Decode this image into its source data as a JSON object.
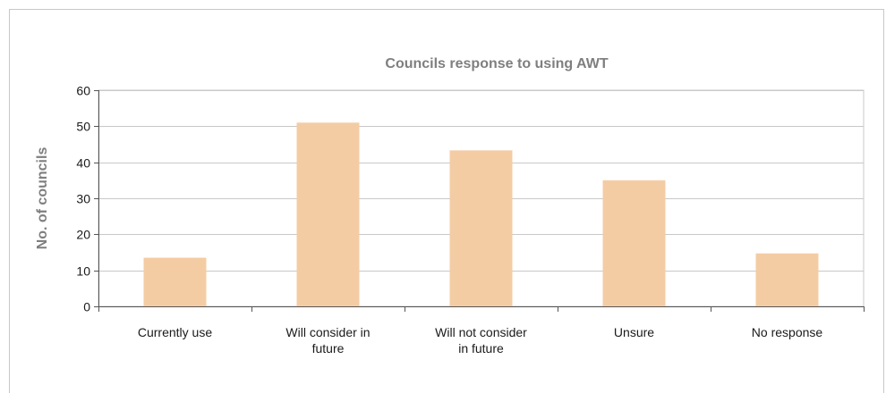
{
  "chart_data": {
    "type": "bar",
    "title": "Councils response to using AWT",
    "xlabel": "",
    "ylabel": "No. of councils",
    "categories": [
      [
        "Currently use"
      ],
      [
        "Will consider in",
        "future"
      ],
      [
        "Will not consider",
        "in future"
      ],
      [
        "Unsure"
      ],
      [
        "No response"
      ]
    ],
    "values": [
      13.5,
      51,
      43.3,
      35,
      14.7
    ],
    "ylim": [
      0,
      60
    ],
    "yticks": [
      0,
      10,
      20,
      30,
      40,
      50,
      60
    ],
    "grid": true,
    "legend": "none",
    "colors": {
      "bar": "#f4cca4",
      "grid": "#c8c8c8",
      "axis": "#555555",
      "frame": "#c8c8c8"
    }
  }
}
